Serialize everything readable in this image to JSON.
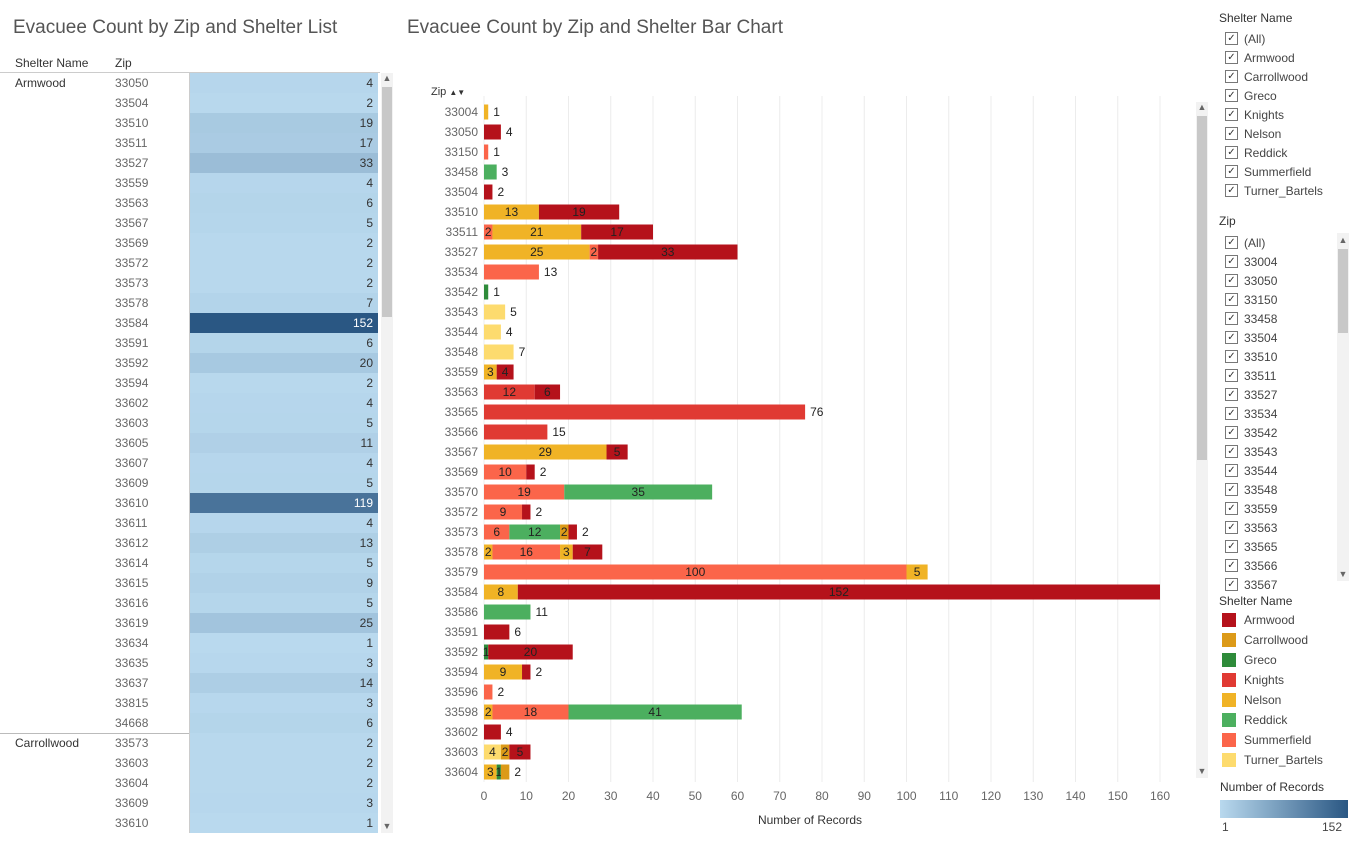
{
  "titles": {
    "list": "Evacuee Count by Zip and Shelter List",
    "chart": "Evacuee Count by Zip and Shelter Bar Chart"
  },
  "list": {
    "col_shelter": "Shelter Name",
    "col_zip": "Zip",
    "groups": [
      {
        "shelter": "Armwood",
        "rows": [
          {
            "zip": "33050",
            "count": 4
          },
          {
            "zip": "33504",
            "count": 2
          },
          {
            "zip": "33510",
            "count": 19
          },
          {
            "zip": "33511",
            "count": 17
          },
          {
            "zip": "33527",
            "count": 33
          },
          {
            "zip": "33559",
            "count": 4
          },
          {
            "zip": "33563",
            "count": 6
          },
          {
            "zip": "33567",
            "count": 5
          },
          {
            "zip": "33569",
            "count": 2
          },
          {
            "zip": "33572",
            "count": 2
          },
          {
            "zip": "33573",
            "count": 2
          },
          {
            "zip": "33578",
            "count": 7
          },
          {
            "zip": "33584",
            "count": 152
          },
          {
            "zip": "33591",
            "count": 6
          },
          {
            "zip": "33592",
            "count": 20
          },
          {
            "zip": "33594",
            "count": 2
          },
          {
            "zip": "33602",
            "count": 4
          },
          {
            "zip": "33603",
            "count": 5
          },
          {
            "zip": "33605",
            "count": 11
          },
          {
            "zip": "33607",
            "count": 4
          },
          {
            "zip": "33609",
            "count": 5
          },
          {
            "zip": "33610",
            "count": 119
          },
          {
            "zip": "33611",
            "count": 4
          },
          {
            "zip": "33612",
            "count": 13
          },
          {
            "zip": "33614",
            "count": 5
          },
          {
            "zip": "33615",
            "count": 9
          },
          {
            "zip": "33616",
            "count": 5
          },
          {
            "zip": "33619",
            "count": 25
          },
          {
            "zip": "33634",
            "count": 1
          },
          {
            "zip": "33635",
            "count": 3
          },
          {
            "zip": "33637",
            "count": 14
          },
          {
            "zip": "33815",
            "count": 3
          },
          {
            "zip": "34668",
            "count": 6
          }
        ]
      },
      {
        "shelter": "Carrollwood",
        "rows": [
          {
            "zip": "33573",
            "count": 2
          },
          {
            "zip": "33603",
            "count": 2
          },
          {
            "zip": "33604",
            "count": 2
          },
          {
            "zip": "33609",
            "count": 3
          },
          {
            "zip": "33610",
            "count": 1
          }
        ]
      }
    ]
  },
  "chart_data": {
    "type": "bar",
    "orientation": "horizontal",
    "stacked": true,
    "xlabel": "Number of Records",
    "ylabel": "Zip",
    "xlim": [
      0,
      160
    ],
    "xticks": [
      0,
      10,
      20,
      30,
      40,
      50,
      60,
      70,
      80,
      90,
      100,
      110,
      120,
      130,
      140,
      150,
      160
    ],
    "series_names": [
      "Armwood",
      "Carrollwood",
      "Greco",
      "Knights",
      "Nelson",
      "Reddick",
      "Summerfield",
      "Turner_Bartels"
    ],
    "rows": [
      {
        "zip": "33004",
        "segments": [
          {
            "s": "Nelson",
            "v": 1
          }
        ]
      },
      {
        "zip": "33050",
        "segments": [
          {
            "s": "Armwood",
            "v": 4
          }
        ]
      },
      {
        "zip": "33150",
        "segments": [
          {
            "s": "Summerfield",
            "v": 1
          }
        ]
      },
      {
        "zip": "33458",
        "segments": [
          {
            "s": "Reddick",
            "v": 3
          }
        ]
      },
      {
        "zip": "33504",
        "segments": [
          {
            "s": "Armwood",
            "v": 2
          }
        ]
      },
      {
        "zip": "33510",
        "segments": [
          {
            "s": "Nelson",
            "v": 13
          },
          {
            "s": "Armwood",
            "v": 19
          }
        ]
      },
      {
        "zip": "33511",
        "segments": [
          {
            "s": "Summerfield",
            "v": 2
          },
          {
            "s": "Nelson",
            "v": 21
          },
          {
            "s": "Armwood",
            "v": 17
          }
        ]
      },
      {
        "zip": "33527",
        "segments": [
          {
            "s": "Nelson",
            "v": 25
          },
          {
            "s": "Summerfield",
            "v": 2
          },
          {
            "s": "Armwood",
            "v": 33
          }
        ]
      },
      {
        "zip": "33534",
        "segments": [
          {
            "s": "Summerfield",
            "v": 13
          }
        ]
      },
      {
        "zip": "33542",
        "segments": [
          {
            "s": "Greco",
            "v": 1
          }
        ]
      },
      {
        "zip": "33543",
        "segments": [
          {
            "s": "Turner_Bartels",
            "v": 5
          }
        ]
      },
      {
        "zip": "33544",
        "segments": [
          {
            "s": "Turner_Bartels",
            "v": 4
          }
        ]
      },
      {
        "zip": "33548",
        "segments": [
          {
            "s": "Turner_Bartels",
            "v": 7
          }
        ]
      },
      {
        "zip": "33559",
        "segments": [
          {
            "s": "Nelson",
            "v": 3
          },
          {
            "s": "Armwood",
            "v": 4
          }
        ]
      },
      {
        "zip": "33563",
        "segments": [
          {
            "s": "Knights",
            "v": 12
          },
          {
            "s": "Armwood",
            "v": 6
          }
        ]
      },
      {
        "zip": "33565",
        "segments": [
          {
            "s": "Knights",
            "v": 76
          }
        ]
      },
      {
        "zip": "33566",
        "segments": [
          {
            "s": "Knights",
            "v": 15
          }
        ]
      },
      {
        "zip": "33567",
        "segments": [
          {
            "s": "Nelson",
            "v": 29
          },
          {
            "s": "Armwood",
            "v": 5
          }
        ]
      },
      {
        "zip": "33569",
        "segments": [
          {
            "s": "Summerfield",
            "v": 10
          },
          {
            "s": "Armwood",
            "v": 2
          }
        ]
      },
      {
        "zip": "33570",
        "segments": [
          {
            "s": "Summerfield",
            "v": 19
          },
          {
            "s": "Reddick",
            "v": 35
          }
        ]
      },
      {
        "zip": "33572",
        "segments": [
          {
            "s": "Summerfield",
            "v": 9
          },
          {
            "s": "Armwood",
            "v": 2
          }
        ]
      },
      {
        "zip": "33573",
        "segments": [
          {
            "s": "Summerfield",
            "v": 6
          },
          {
            "s": "Reddick",
            "v": 12
          },
          {
            "s": "Carrollwood",
            "v": 2
          },
          {
            "s": "Armwood",
            "v": 2
          }
        ]
      },
      {
        "zip": "33578",
        "segments": [
          {
            "s": "Nelson",
            "v": 2
          },
          {
            "s": "Summerfield",
            "v": 16
          },
          {
            "s": "Nelson",
            "v": 3
          },
          {
            "s": "Armwood",
            "v": 7
          }
        ]
      },
      {
        "zip": "33579",
        "segments": [
          {
            "s": "Summerfield",
            "v": 100
          },
          {
            "s": "Nelson",
            "v": 5
          }
        ]
      },
      {
        "zip": "33584",
        "segments": [
          {
            "s": "Nelson",
            "v": 8
          },
          {
            "s": "Armwood",
            "v": 152
          }
        ]
      },
      {
        "zip": "33586",
        "segments": [
          {
            "s": "Reddick",
            "v": 11
          }
        ]
      },
      {
        "zip": "33591",
        "segments": [
          {
            "s": "Armwood",
            "v": 6
          }
        ]
      },
      {
        "zip": "33592",
        "segments": [
          {
            "s": "Greco",
            "v": 1
          },
          {
            "s": "Armwood",
            "v": 20
          }
        ]
      },
      {
        "zip": "33594",
        "segments": [
          {
            "s": "Nelson",
            "v": 9
          },
          {
            "s": "Armwood",
            "v": 2
          }
        ]
      },
      {
        "zip": "33596",
        "segments": [
          {
            "s": "Summerfield",
            "v": 2
          }
        ]
      },
      {
        "zip": "33598",
        "segments": [
          {
            "s": "Nelson",
            "v": 2
          },
          {
            "s": "Summerfield",
            "v": 18
          },
          {
            "s": "Reddick",
            "v": 41
          }
        ]
      },
      {
        "zip": "33602",
        "segments": [
          {
            "s": "Armwood",
            "v": 4
          }
        ]
      },
      {
        "zip": "33603",
        "segments": [
          {
            "s": "Turner_Bartels",
            "v": 4
          },
          {
            "s": "Carrollwood",
            "v": 2
          },
          {
            "s": "Armwood",
            "v": 5
          }
        ]
      },
      {
        "zip": "33604",
        "segments": [
          {
            "s": "Nelson",
            "v": 3
          },
          {
            "s": "Greco",
            "v": 1
          },
          {
            "s": "Carrollwood",
            "v": 2
          }
        ]
      }
    ]
  },
  "filters": {
    "shelter_title": "Shelter Name",
    "shelter_items": [
      "(All)",
      "Armwood",
      "Carrollwood",
      "Greco",
      "Knights",
      "Nelson",
      "Reddick",
      "Summerfield",
      "Turner_Bartels"
    ],
    "zip_title": "Zip",
    "zip_items": [
      "(All)",
      "33004",
      "33050",
      "33150",
      "33458",
      "33504",
      "33510",
      "33511",
      "33527",
      "33534",
      "33542",
      "33543",
      "33544",
      "33548",
      "33559",
      "33563",
      "33565",
      "33566",
      "33567"
    ]
  },
  "legend": {
    "title": "Shelter Name",
    "items": [
      {
        "name": "Armwood",
        "color": "#b5121b"
      },
      {
        "name": "Carrollwood",
        "color": "#dc9a18"
      },
      {
        "name": "Greco",
        "color": "#2e8b3a"
      },
      {
        "name": "Knights",
        "color": "#e03a33"
      },
      {
        "name": "Nelson",
        "color": "#f0b326"
      },
      {
        "name": "Reddick",
        "color": "#4caf5f"
      },
      {
        "name": "Summerfield",
        "color": "#fb654a"
      },
      {
        "name": "Turner_Bartels",
        "color": "#fddb6e"
      }
    ]
  },
  "color_scale": {
    "title": "Number of Records",
    "min": "1",
    "max": "152",
    "low_color": "#b9d9ee",
    "high_color": "#2a5783"
  }
}
